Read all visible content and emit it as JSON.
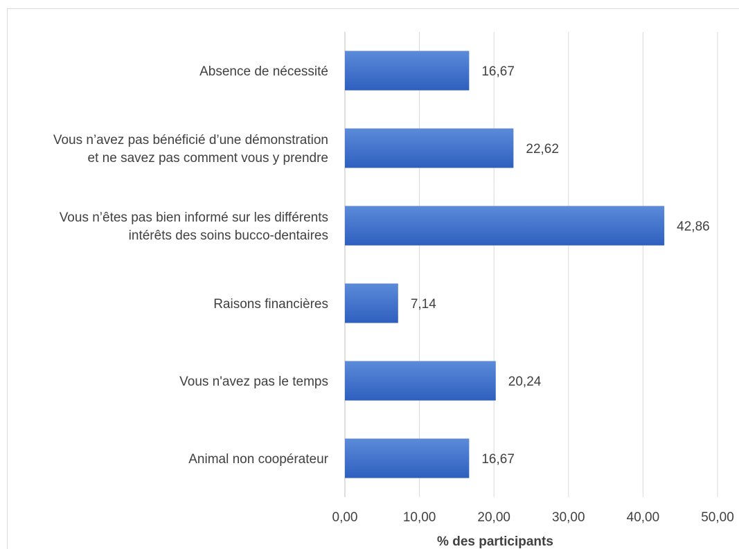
{
  "chart_data": {
    "type": "bar",
    "orientation": "horizontal",
    "categories": [
      [
        "Absence de nécessité"
      ],
      [
        "Vous n’avez pas bénéficié d’une démonstration",
        "et ne savez pas comment vous y prendre"
      ],
      [
        "Vous n’êtes pas bien informé sur les différents",
        "intérêts des soins bucco-dentaires"
      ],
      [
        "Raisons financières"
      ],
      [
        "Vous n'avez pas le temps"
      ],
      [
        "Animal non coopérateur"
      ]
    ],
    "values": [
      16.67,
      22.62,
      42.86,
      7.14,
      20.24,
      16.67
    ],
    "data_labels": [
      "16,67",
      "22,62",
      "42,86",
      "7,14",
      "20,24",
      "16,67"
    ],
    "x_ticks": [
      0,
      10,
      20,
      30,
      40,
      50
    ],
    "x_tick_labels": [
      "0,00",
      "10,00",
      "20,00",
      "30,00",
      "40,00",
      "50,00"
    ],
    "xlim": [
      0,
      50
    ],
    "xlabel": "% des participants",
    "ylabel": "",
    "title": "",
    "grid": "vertical",
    "legend": "none",
    "bar_color_top": "#5b8bd9",
    "bar_color_bottom": "#2e5fbf",
    "grid_color": "#d9d9d9",
    "text_color": "#404040"
  }
}
